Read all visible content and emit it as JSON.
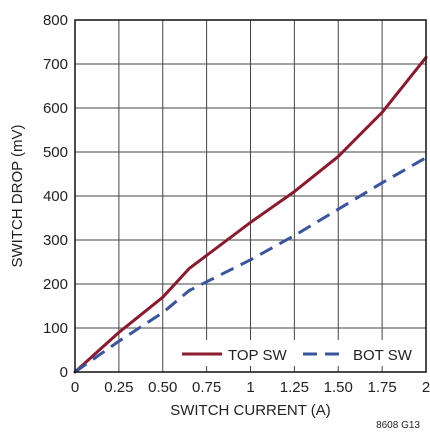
{
  "chart_data": {
    "type": "line",
    "title": "",
    "xlabel": "SWITCH CURRENT (A)",
    "ylabel": "SWITCH DROP (mV)",
    "xlim": [
      0,
      2
    ],
    "ylim": [
      0,
      800
    ],
    "x_ticks": [
      "0",
      "0.25",
      "0.50",
      "0.75",
      "1",
      "1.25",
      "1.50",
      "1.75",
      "2"
    ],
    "y_ticks": [
      "0",
      "100",
      "200",
      "300",
      "400",
      "500",
      "600",
      "700",
      "800"
    ],
    "grid": true,
    "legend_position": "bottom-right",
    "series": [
      {
        "name": "TOP SW",
        "color": "#8b1a2e",
        "style": "solid",
        "points": [
          [
            0,
            0
          ],
          [
            0.25,
            90
          ],
          [
            0.5,
            170
          ],
          [
            0.65,
            235
          ],
          [
            0.75,
            265
          ],
          [
            1.0,
            340
          ],
          [
            1.25,
            410
          ],
          [
            1.5,
            490
          ],
          [
            1.75,
            590
          ],
          [
            2.0,
            715
          ]
        ]
      },
      {
        "name": "BOT SW",
        "color": "#3a55a0",
        "style": "dashed",
        "points": [
          [
            0,
            0
          ],
          [
            0.25,
            70
          ],
          [
            0.5,
            135
          ],
          [
            0.65,
            185
          ],
          [
            0.75,
            205
          ],
          [
            1.0,
            255
          ],
          [
            1.25,
            310
          ],
          [
            1.5,
            370
          ],
          [
            1.75,
            430
          ],
          [
            2.0,
            487
          ]
        ]
      }
    ]
  },
  "figure_code": "8608 G13"
}
